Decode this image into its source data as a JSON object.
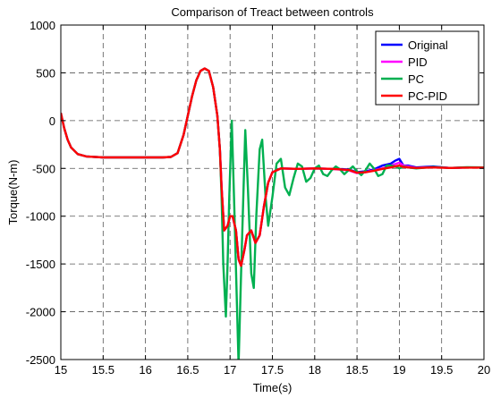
{
  "chart_data": {
    "type": "line",
    "title": "Comparison of Treact between controls",
    "xlabel": "Time(s)",
    "ylabel": "Torque(N-m)",
    "xlim": [
      15,
      20
    ],
    "ylim": [
      -2500,
      1000
    ],
    "xticks": [
      15,
      15.5,
      16,
      16.5,
      17,
      17.5,
      18,
      18.5,
      19,
      19.5,
      20
    ],
    "xtick_labels": [
      "15",
      "15.5",
      "16",
      "16.5",
      "17",
      "17.5",
      "18",
      "18.5",
      "19",
      "19.5",
      "20"
    ],
    "yticks": [
      1000,
      500,
      0,
      -500,
      -1000,
      -1500,
      -2000,
      -2500
    ],
    "ytick_labels": [
      "1000",
      "500",
      "0",
      "-500",
      "-1000",
      "-1500",
      "-2000",
      "-2500"
    ],
    "grid": true,
    "legend_position": "top-right",
    "series": [
      {
        "name": "Original",
        "color": "#0000ff",
        "points": [
          [
            15,
            80
          ],
          [
            15.04,
            -80
          ],
          [
            15.08,
            -200
          ],
          [
            15.12,
            -280
          ],
          [
            15.2,
            -350
          ],
          [
            15.3,
            -375
          ],
          [
            15.5,
            -385
          ],
          [
            15.8,
            -385
          ],
          [
            16,
            -385
          ],
          [
            16.2,
            -385
          ],
          [
            16.3,
            -380
          ],
          [
            16.38,
            -340
          ],
          [
            16.45,
            -150
          ],
          [
            16.5,
            50
          ],
          [
            16.55,
            250
          ],
          [
            16.6,
            420
          ],
          [
            16.65,
            520
          ],
          [
            16.7,
            545
          ],
          [
            16.75,
            520
          ],
          [
            16.8,
            350
          ],
          [
            16.85,
            50
          ],
          [
            16.88,
            -300
          ],
          [
            16.9,
            -700
          ],
          [
            16.93,
            -1150
          ],
          [
            16.97,
            -1100
          ],
          [
            17,
            -1000
          ],
          [
            17.03,
            -1000
          ],
          [
            17.07,
            -1150
          ],
          [
            17.1,
            -1450
          ],
          [
            17.13,
            -1520
          ],
          [
            17.17,
            -1350
          ],
          [
            17.2,
            -1200
          ],
          [
            17.25,
            -1150
          ],
          [
            17.3,
            -1280
          ],
          [
            17.35,
            -1200
          ],
          [
            17.4,
            -900
          ],
          [
            17.45,
            -650
          ],
          [
            17.5,
            -540
          ],
          [
            17.6,
            -500
          ],
          [
            17.8,
            -505
          ],
          [
            18,
            -500
          ],
          [
            18.2,
            -505
          ],
          [
            18.4,
            -510
          ],
          [
            18.5,
            -540
          ],
          [
            18.6,
            -530
          ],
          [
            18.7,
            -510
          ],
          [
            18.8,
            -470
          ],
          [
            18.9,
            -450
          ],
          [
            18.95,
            -420
          ],
          [
            19,
            -400
          ],
          [
            19.05,
            -470
          ],
          [
            19.1,
            -470
          ],
          [
            19.2,
            -490
          ],
          [
            19.4,
            -480
          ],
          [
            19.6,
            -495
          ],
          [
            19.8,
            -490
          ],
          [
            20,
            -490
          ]
        ]
      },
      {
        "name": "PID",
        "color": "#ff00ff",
        "points": [
          [
            15,
            80
          ],
          [
            15.04,
            -80
          ],
          [
            15.08,
            -200
          ],
          [
            15.12,
            -280
          ],
          [
            15.2,
            -350
          ],
          [
            15.3,
            -375
          ],
          [
            15.5,
            -385
          ],
          [
            15.8,
            -385
          ],
          [
            16,
            -385
          ],
          [
            16.2,
            -385
          ],
          [
            16.3,
            -380
          ],
          [
            16.38,
            -340
          ],
          [
            16.45,
            -150
          ],
          [
            16.5,
            50
          ],
          [
            16.55,
            250
          ],
          [
            16.6,
            420
          ],
          [
            16.65,
            520
          ],
          [
            16.7,
            545
          ],
          [
            16.75,
            520
          ],
          [
            16.8,
            350
          ],
          [
            16.85,
            50
          ],
          [
            16.88,
            -300
          ],
          [
            16.9,
            -700
          ],
          [
            16.93,
            -1150
          ],
          [
            16.97,
            -1100
          ],
          [
            17,
            -1000
          ],
          [
            17.03,
            -1000
          ],
          [
            17.07,
            -1150
          ],
          [
            17.1,
            -1450
          ],
          [
            17.13,
            -1520
          ],
          [
            17.17,
            -1350
          ],
          [
            17.2,
            -1200
          ],
          [
            17.25,
            -1150
          ],
          [
            17.3,
            -1280
          ],
          [
            17.35,
            -1200
          ],
          [
            17.4,
            -900
          ],
          [
            17.45,
            -650
          ],
          [
            17.5,
            -540
          ],
          [
            17.6,
            -500
          ],
          [
            17.8,
            -505
          ],
          [
            18,
            -500
          ],
          [
            18.2,
            -505
          ],
          [
            18.4,
            -520
          ],
          [
            18.5,
            -550
          ],
          [
            18.6,
            -540
          ],
          [
            18.7,
            -520
          ],
          [
            18.8,
            -500
          ],
          [
            18.9,
            -470
          ],
          [
            19,
            -440
          ],
          [
            19.05,
            -470
          ],
          [
            19.1,
            -480
          ],
          [
            19.2,
            -495
          ],
          [
            19.4,
            -485
          ],
          [
            19.6,
            -495
          ],
          [
            19.8,
            -490
          ],
          [
            20,
            -490
          ]
        ]
      },
      {
        "name": "PC",
        "color": "#00b050",
        "points": [
          [
            15,
            80
          ],
          [
            15.04,
            -80
          ],
          [
            15.08,
            -200
          ],
          [
            15.12,
            -280
          ],
          [
            15.2,
            -350
          ],
          [
            15.3,
            -375
          ],
          [
            15.5,
            -385
          ],
          [
            15.8,
            -385
          ],
          [
            16,
            -385
          ],
          [
            16.2,
            -385
          ],
          [
            16.3,
            -380
          ],
          [
            16.38,
            -340
          ],
          [
            16.45,
            -150
          ],
          [
            16.5,
            50
          ],
          [
            16.55,
            250
          ],
          [
            16.6,
            420
          ],
          [
            16.65,
            520
          ],
          [
            16.7,
            545
          ],
          [
            16.75,
            520
          ],
          [
            16.8,
            350
          ],
          [
            16.85,
            50
          ],
          [
            16.88,
            -300
          ],
          [
            16.9,
            -800
          ],
          [
            16.92,
            -1500
          ],
          [
            16.95,
            -2050
          ],
          [
            16.97,
            -1500
          ],
          [
            16.99,
            -800
          ],
          [
            17.02,
            0
          ],
          [
            17.05,
            -900
          ],
          [
            17.08,
            -1900
          ],
          [
            17.1,
            -2550
          ],
          [
            17.13,
            -1600
          ],
          [
            17.16,
            -700
          ],
          [
            17.18,
            -100
          ],
          [
            17.21,
            -700
          ],
          [
            17.25,
            -1600
          ],
          [
            17.28,
            -1750
          ],
          [
            17.31,
            -1000
          ],
          [
            17.35,
            -300
          ],
          [
            17.38,
            -200
          ],
          [
            17.42,
            -800
          ],
          [
            17.45,
            -1100
          ],
          [
            17.5,
            -800
          ],
          [
            17.55,
            -450
          ],
          [
            17.6,
            -400
          ],
          [
            17.65,
            -700
          ],
          [
            17.7,
            -780
          ],
          [
            17.75,
            -600
          ],
          [
            17.8,
            -450
          ],
          [
            17.85,
            -480
          ],
          [
            17.9,
            -640
          ],
          [
            17.95,
            -600
          ],
          [
            18,
            -500
          ],
          [
            18.05,
            -470
          ],
          [
            18.1,
            -560
          ],
          [
            18.15,
            -580
          ],
          [
            18.2,
            -520
          ],
          [
            18.25,
            -480
          ],
          [
            18.3,
            -510
          ],
          [
            18.35,
            -560
          ],
          [
            18.4,
            -520
          ],
          [
            18.45,
            -480
          ],
          [
            18.5,
            -530
          ],
          [
            18.55,
            -570
          ],
          [
            18.6,
            -520
          ],
          [
            18.65,
            -450
          ],
          [
            18.7,
            -500
          ],
          [
            18.75,
            -580
          ],
          [
            18.8,
            -560
          ],
          [
            18.85,
            -470
          ],
          [
            18.9,
            -470
          ],
          [
            18.95,
            -480
          ],
          [
            19,
            -500
          ],
          [
            19.05,
            -480
          ],
          [
            19.1,
            -490
          ],
          [
            19.2,
            -500
          ],
          [
            19.4,
            -485
          ],
          [
            19.6,
            -495
          ],
          [
            19.8,
            -488
          ],
          [
            20,
            -490
          ]
        ]
      },
      {
        "name": "PC-PID",
        "color": "#ff0000",
        "points": [
          [
            15,
            80
          ],
          [
            15.04,
            -80
          ],
          [
            15.08,
            -200
          ],
          [
            15.12,
            -280
          ],
          [
            15.2,
            -350
          ],
          [
            15.3,
            -375
          ],
          [
            15.5,
            -385
          ],
          [
            15.8,
            -385
          ],
          [
            16,
            -385
          ],
          [
            16.2,
            -385
          ],
          [
            16.3,
            -380
          ],
          [
            16.38,
            -340
          ],
          [
            16.45,
            -150
          ],
          [
            16.5,
            50
          ],
          [
            16.55,
            250
          ],
          [
            16.6,
            420
          ],
          [
            16.65,
            520
          ],
          [
            16.7,
            545
          ],
          [
            16.75,
            520
          ],
          [
            16.8,
            350
          ],
          [
            16.85,
            50
          ],
          [
            16.88,
            -300
          ],
          [
            16.9,
            -700
          ],
          [
            16.93,
            -1150
          ],
          [
            16.97,
            -1100
          ],
          [
            17,
            -1000
          ],
          [
            17.03,
            -1000
          ],
          [
            17.07,
            -1150
          ],
          [
            17.1,
            -1450
          ],
          [
            17.13,
            -1520
          ],
          [
            17.17,
            -1350
          ],
          [
            17.2,
            -1200
          ],
          [
            17.25,
            -1150
          ],
          [
            17.3,
            -1280
          ],
          [
            17.35,
            -1200
          ],
          [
            17.4,
            -900
          ],
          [
            17.45,
            -650
          ],
          [
            17.5,
            -540
          ],
          [
            17.6,
            -500
          ],
          [
            17.8,
            -505
          ],
          [
            18,
            -500
          ],
          [
            18.2,
            -505
          ],
          [
            18.4,
            -515
          ],
          [
            18.5,
            -545
          ],
          [
            18.6,
            -540
          ],
          [
            18.7,
            -525
          ],
          [
            18.8,
            -505
          ],
          [
            18.9,
            -490
          ],
          [
            19,
            -470
          ],
          [
            19.05,
            -485
          ],
          [
            19.1,
            -490
          ],
          [
            19.2,
            -495
          ],
          [
            19.4,
            -490
          ],
          [
            19.6,
            -495
          ],
          [
            19.8,
            -492
          ],
          [
            20,
            -492
          ]
        ]
      }
    ]
  }
}
